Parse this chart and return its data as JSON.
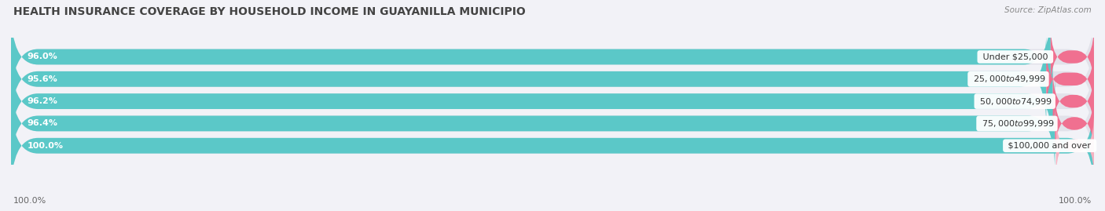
{
  "title": "HEALTH INSURANCE COVERAGE BY HOUSEHOLD INCOME IN GUAYANILLA MUNICIPIO",
  "source": "Source: ZipAtlas.com",
  "categories": [
    "Under $25,000",
    "$25,000 to $49,999",
    "$50,000 to $74,999",
    "$75,000 to $99,999",
    "$100,000 and over"
  ],
  "with_coverage": [
    96.0,
    95.6,
    96.2,
    96.4,
    100.0
  ],
  "without_coverage": [
    4.0,
    4.4,
    3.8,
    3.6,
    0.0
  ],
  "coverage_color": "#5bc8c8",
  "no_coverage_color": "#f07090",
  "no_coverage_color_last": "#f8b0c0",
  "background_color": "#f2f2f7",
  "bar_bg_color": "#e2e2ea",
  "title_fontsize": 10,
  "source_fontsize": 7.5,
  "label_fontsize": 8,
  "legend_fontsize": 8.5,
  "axis_label_fontsize": 8
}
